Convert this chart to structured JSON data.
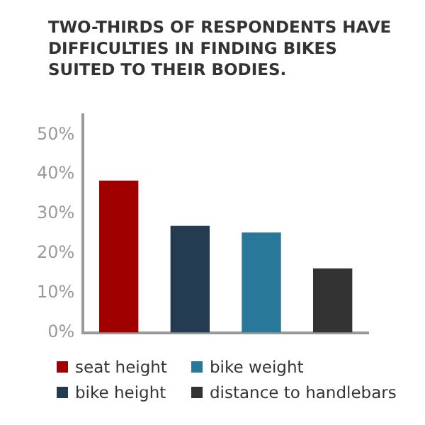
{
  "chart_data": {
    "type": "bar",
    "title": "TWO-THIRDS OF RESPONDENTS HAVE DIFFICULTIES IN FINDING BIKES SUITED TO THEIR BODIES.",
    "categories": [
      null,
      null,
      null,
      null
    ],
    "series": [
      {
        "name": "seat height",
        "color": "#a00000",
        "values": [
          38.4,
          null,
          null,
          null
        ]
      },
      {
        "name": "bike height",
        "color": "#243b52",
        "values": [
          null,
          27.0,
          null,
          null
        ]
      },
      {
        "name": "bike weight",
        "color": "#2a7899",
        "values": [
          null,
          null,
          25.3,
          null
        ]
      },
      {
        "name": "distance to handlebars",
        "color": "#333333",
        "values": [
          null,
          null,
          null,
          16.2
        ]
      }
    ],
    "ylim": [
      0,
      55
    ],
    "yticks": [
      {
        "value": 0,
        "label": "0%"
      },
      {
        "value": 10,
        "label": "10%"
      },
      {
        "value": 20,
        "label": "20%"
      },
      {
        "value": 30,
        "label": "30%"
      },
      {
        "value": 40,
        "label": "40%"
      },
      {
        "value": 50,
        "label": "50%"
      }
    ],
    "grid": false,
    "stacked": true,
    "legend": "bottom"
  }
}
